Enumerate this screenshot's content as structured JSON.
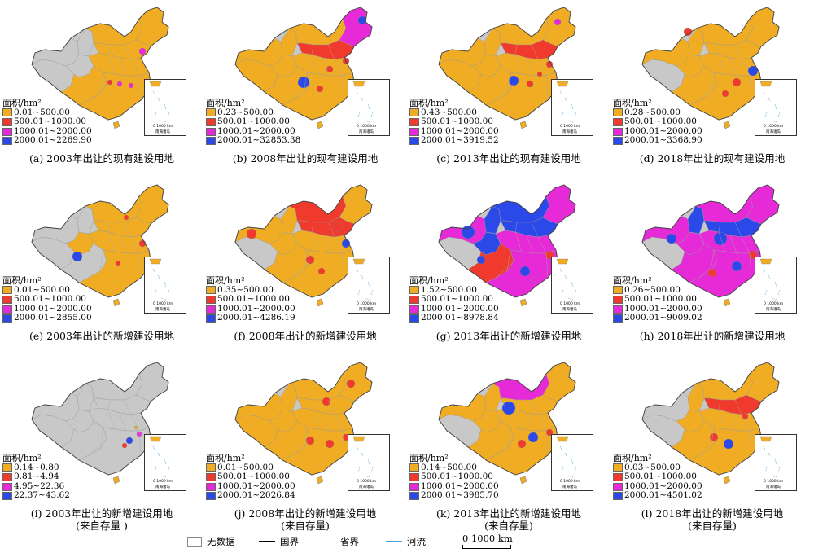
{
  "colors": {
    "no_data": "#c8c8c8",
    "class1": "#f0ad23",
    "class2": "#ef3a2d",
    "class3": "#e62ad8",
    "class4": "#2b49e8",
    "river": "#4aa3df"
  },
  "legend_title": "面积/hm²",
  "inset_label": "南海诸岛",
  "inset_scale": "0  1000 km",
  "panels": [
    {
      "caption": "(a) 2003年出让的现有建设用地",
      "caption2": "",
      "legend": [
        "0.01~500.00",
        "500.01~1000.00",
        "1000.01~2000.00",
        "2000.01~2269.90"
      ]
    },
    {
      "caption": "(b) 2008年出让的现有建设用地",
      "caption2": "",
      "legend": [
        "0.23~500.00",
        "500.01~1000.00",
        "1000.01~2000.00",
        "2000.01~32853.38"
      ]
    },
    {
      "caption": "(c) 2013年出让的现有建设用地",
      "caption2": "",
      "legend": [
        "0.43~500.00",
        "500.01~1000.00",
        "1000.01~2000.00",
        "2000.01~3919.52"
      ]
    },
    {
      "caption": "(d) 2018年出让的现有建设用地",
      "caption2": "",
      "legend": [
        "0.28~500.00",
        "500.01~1000.00",
        "1000.01~2000.00",
        "2000.01~3368.90"
      ]
    },
    {
      "caption": "(e) 2003年出让的新增建设用地",
      "caption2": "",
      "legend": [
        "0.01~500.00",
        "500.01~1000.00",
        "1000.01~2000.00",
        "2000.01~2855.00"
      ]
    },
    {
      "caption": "(f) 2008年出让的新增建设用地",
      "caption2": "",
      "legend": [
        "0.35~500.00",
        "500.01~1000.00",
        "1000.01~2000.00",
        "2000.01~4286.19"
      ]
    },
    {
      "caption": "(g) 2013年出让的新增建设用地",
      "caption2": "",
      "legend": [
        "1.52~500.00",
        "500.01~1000.00",
        "1000.01~2000.00",
        "2000.01~8978.84"
      ]
    },
    {
      "caption": "(h) 2018年出让的新增建设用地",
      "caption2": "",
      "legend": [
        "0.26~500.00",
        "500.01~1000.00",
        "1000.01~2000.00",
        "2000.01~9009.02"
      ]
    },
    {
      "caption": "(i) 2003年出让的新增建设用地",
      "caption2": "(来自存量 )",
      "legend": [
        "0.14~0.80",
        "0.81~4.94",
        "4.95~22.36",
        "22.37~43.62"
      ]
    },
    {
      "caption": "(j) 2008年出让的新增建设用地",
      "caption2": "(来自存量)",
      "legend": [
        "0.01~500.00",
        "500.01~1000.00",
        "1000.01~2000.00",
        "2000.01~2026.84"
      ]
    },
    {
      "caption": "(k) 2013年出让的新增建设用地",
      "caption2": "(来自存量)",
      "legend": [
        "0.14~500.00",
        "500.01~1000.00",
        "1000.01~2000.00",
        "2000.01~3985.70"
      ]
    },
    {
      "caption": "(l) 2018年出让的新增建设用地",
      "caption2": "(来自存量)",
      "legend": [
        "0.03~500.00",
        "500.01~1000.00",
        "1000.01~2000.00",
        "2000.01~4501.02"
      ]
    }
  ],
  "bottom_legend": {
    "no_data": "无数据",
    "national_border": "国界",
    "provincial_border": "省界",
    "river": "河流",
    "scale": "0  1000 km"
  }
}
